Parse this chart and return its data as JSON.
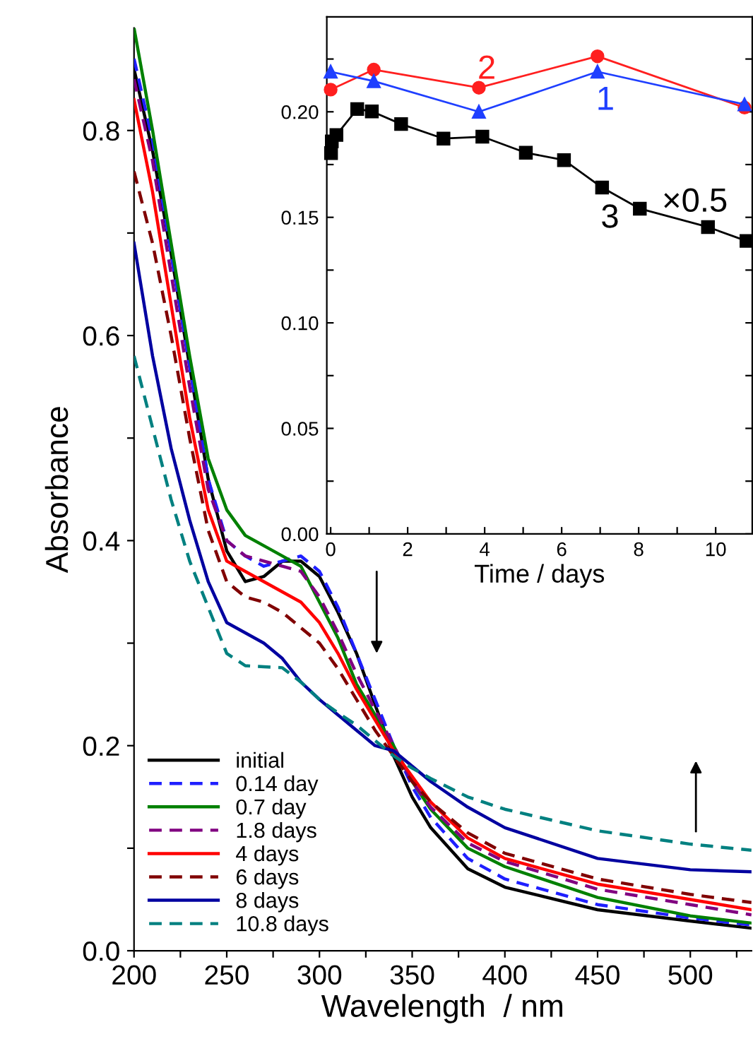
{
  "chart_data": [
    {
      "type": "line",
      "xlabel": "Wavelength  / nm",
      "ylabel": "Absorbance",
      "x": [
        200,
        210,
        220,
        230,
        240,
        250,
        260,
        270,
        280,
        290,
        300,
        310,
        320,
        330,
        340,
        350,
        360,
        380,
        400,
        450,
        500,
        533
      ],
      "series": [
        {
          "name": "initial",
          "color": "#000000",
          "line_style": "solid",
          "values": [
            0.86,
            0.78,
            0.68,
            0.57,
            0.46,
            0.39,
            0.36,
            0.365,
            0.38,
            0.38,
            0.365,
            0.33,
            0.29,
            0.24,
            0.19,
            0.15,
            0.12,
            0.08,
            0.062,
            0.04,
            0.029,
            0.022
          ]
        },
        {
          "name": "0.14 day",
          "color": "#1f1fff",
          "line_style": "dashed",
          "values": [
            0.87,
            0.79,
            0.68,
            0.57,
            0.46,
            0.4,
            0.385,
            0.375,
            0.38,
            0.385,
            0.37,
            0.335,
            0.29,
            0.245,
            0.2,
            0.16,
            0.13,
            0.09,
            0.07,
            0.045,
            0.032,
            0.025
          ]
        },
        {
          "name": "0.7 day",
          "color": "#008000",
          "line_style": "solid",
          "values": [
            0.9,
            0.8,
            0.69,
            0.58,
            0.48,
            0.43,
            0.405,
            0.395,
            0.385,
            0.375,
            0.34,
            0.305,
            0.26,
            0.23,
            0.2,
            0.165,
            0.138,
            0.1,
            0.082,
            0.052,
            0.034,
            0.027
          ]
        },
        {
          "name": "1.8 days",
          "color": "#800080",
          "line_style": "dashed",
          "values": [
            0.85,
            0.77,
            0.66,
            0.55,
            0.45,
            0.4,
            0.385,
            0.38,
            0.375,
            0.37,
            0.345,
            0.31,
            0.27,
            0.235,
            0.2,
            0.165,
            0.14,
            0.105,
            0.087,
            0.06,
            0.045,
            0.035
          ]
        },
        {
          "name": "4 days",
          "color": "#ff0000",
          "line_style": "solid",
          "values": [
            0.83,
            0.74,
            0.63,
            0.52,
            0.43,
            0.38,
            0.37,
            0.36,
            0.35,
            0.34,
            0.32,
            0.29,
            0.255,
            0.225,
            0.195,
            0.17,
            0.145,
            0.11,
            0.09,
            0.065,
            0.05,
            0.04
          ]
        },
        {
          "name": "6 days",
          "color": "#800000",
          "line_style": "dashed",
          "values": [
            0.76,
            0.69,
            0.6,
            0.5,
            0.41,
            0.36,
            0.345,
            0.34,
            0.33,
            0.315,
            0.3,
            0.275,
            0.245,
            0.215,
            0.19,
            0.165,
            0.145,
            0.115,
            0.095,
            0.07,
            0.055,
            0.047
          ]
        },
        {
          "name": "8 days",
          "color": "#0000a0",
          "line_style": "solid",
          "values": [
            0.69,
            0.58,
            0.49,
            0.42,
            0.36,
            0.32,
            0.31,
            0.3,
            0.285,
            0.262,
            0.245,
            0.23,
            0.215,
            0.2,
            0.195,
            0.18,
            0.165,
            0.14,
            0.12,
            0.09,
            0.079,
            0.077
          ]
        },
        {
          "name": "10.8 days",
          "color": "#008080",
          "line_style": "dashed",
          "values": [
            0.58,
            0.51,
            0.44,
            0.38,
            0.335,
            0.29,
            0.278,
            0.277,
            0.276,
            0.262,
            0.245,
            0.232,
            0.22,
            0.205,
            0.19,
            0.178,
            0.168,
            0.15,
            0.138,
            0.117,
            0.104,
            0.098
          ]
        }
      ],
      "xlim": [
        200,
        533
      ],
      "xticks": [
        200,
        {
          "value": 225,
          "label": null
        },
        250,
        {
          "value": 275,
          "label": null
        },
        300,
        {
          "value": 325,
          "label": null
        },
        350,
        {
          "value": 375,
          "label": null
        },
        400,
        {
          "value": 425,
          "label": null
        },
        450,
        {
          "value": 475,
          "label": null
        },
        500,
        {
          "value": 525,
          "label": null
        }
      ],
      "ylim": [
        0,
        0.9
      ],
      "yticks": [
        {
          "value": 0,
          "label": "0.0"
        },
        {
          "value": 0.1,
          "label": null
        },
        {
          "value": 0.2,
          "label": "0.2"
        },
        {
          "value": 0.3,
          "label": null
        },
        {
          "value": 0.4,
          "label": "0.4"
        },
        {
          "value": 0.5,
          "label": null
        },
        {
          "value": 0.6,
          "label": "0.6"
        },
        {
          "value": 0.7,
          "label": null
        },
        {
          "value": 0.8,
          "label": "0.8"
        }
      ],
      "legend": "bottom left",
      "grid": false
    },
    {
      "type": "line",
      "xlabel": "Time / days",
      "series": [
        {
          "name": "1",
          "color": "#1f3fff",
          "marker": "triangle",
          "x": [
            0,
            1.12,
            3.85,
            6.93,
            10.75
          ],
          "values": [
            0.219,
            0.2145,
            0.2,
            0.219,
            0.2035
          ]
        },
        {
          "name": "2",
          "color": "#ff1f1f",
          "marker": "circle",
          "x": [
            0,
            1.12,
            3.85,
            6.93,
            10.75
          ],
          "values": [
            0.2105,
            0.22,
            0.2114,
            0.2263,
            0.202
          ]
        },
        {
          "name": "3",
          "color": "#000000",
          "marker": "square",
          "x": [
            0.01,
            0.03,
            0.15,
            0.69,
            1.07,
            1.83,
            2.93,
            3.94,
            5.07,
            6.06,
            7.05,
            8.03,
            9.8,
            10.8
          ],
          "values": [
            0.1804,
            0.186,
            0.189,
            0.2013,
            0.2002,
            0.1942,
            0.1873,
            0.1882,
            0.1806,
            0.1771,
            0.1641,
            0.1541,
            0.1454,
            0.1388
          ]
        }
      ],
      "annotations": [
        "×0.5"
      ],
      "xlim": [
        -0.1,
        10.95
      ],
      "xticks": [
        0,
        {
          "value": 1,
          "label": null
        },
        2,
        {
          "value": 3,
          "label": null
        },
        4,
        {
          "value": 5,
          "label": null
        },
        6,
        {
          "value": 7,
          "label": null
        },
        8,
        {
          "value": 9,
          "label": null
        },
        10
      ],
      "ylim": [
        0,
        0.245
      ],
      "yticks": [
        {
          "value": 0,
          "label": "0.00"
        },
        {
          "value": 0.025,
          "label": null
        },
        {
          "value": 0.05,
          "label": "0.05"
        },
        {
          "value": 0.075,
          "label": null
        },
        {
          "value": 0.1,
          "label": "0.10"
        },
        {
          "value": 0.125,
          "label": null
        },
        {
          "value": 0.15,
          "label": "0.15"
        },
        {
          "value": 0.175,
          "label": null
        },
        {
          "value": 0.2,
          "label": "0.20"
        },
        {
          "value": 0.225,
          "label": null
        }
      ],
      "legend": false,
      "grid": false
    }
  ]
}
